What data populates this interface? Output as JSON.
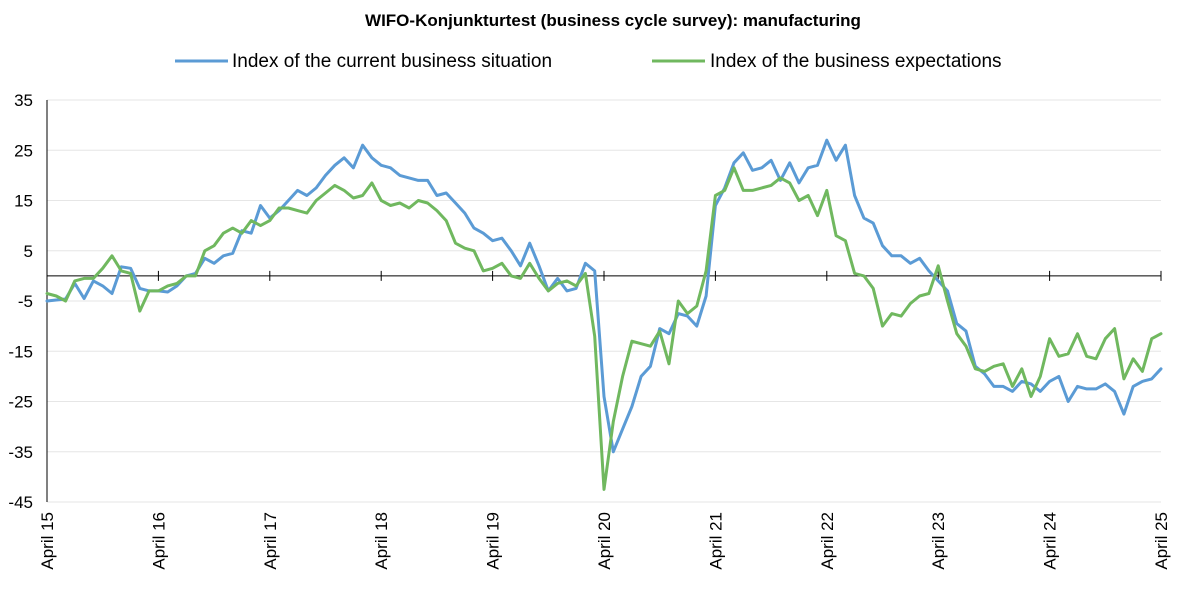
{
  "chart_data": {
    "type": "line",
    "title": "WIFO-Konjunkturtest (business cycle survey): manufacturing",
    "xlabel": "",
    "ylabel": "",
    "ylim": [
      -45,
      35
    ],
    "yticks": [
      35,
      25,
      15,
      5,
      -5,
      -15,
      -25,
      -35,
      -45
    ],
    "x_ticks": [
      "April 15",
      "April 16",
      "April 17",
      "April 18",
      "April 19",
      "April 20",
      "April 21",
      "April 22",
      "April 23",
      "April 24",
      "April 25"
    ],
    "x_start": "April 15",
    "x_end": "April 25",
    "frequency": "monthly",
    "grid": true,
    "legend_position": "top",
    "series": [
      {
        "name": "Index of the current business situation",
        "color": "#5b9bd5",
        "values": [
          -5.0,
          -4.8,
          -4.6,
          -1.5,
          -4.5,
          -1.0,
          -2.0,
          -3.5,
          1.8,
          1.5,
          -2.5,
          -3.0,
          -3.0,
          -3.2,
          -2.0,
          0.0,
          0.5,
          3.5,
          2.5,
          4.0,
          4.5,
          9.0,
          8.5,
          14.0,
          11.5,
          13.0,
          15.0,
          17.0,
          16.0,
          17.5,
          20.0,
          22.0,
          23.5,
          21.5,
          26.0,
          23.5,
          22.0,
          21.5,
          20.0,
          19.5,
          19.0,
          19.0,
          16.0,
          16.5,
          14.5,
          12.5,
          9.5,
          8.5,
          7.0,
          7.5,
          5.0,
          2.0,
          6.5,
          2.0,
          -3.0,
          -0.5,
          -3.0,
          -2.5,
          2.5,
          1.0,
          -24.0,
          -35.0,
          -30.5,
          -26.0,
          -20.0,
          -18.0,
          -10.5,
          -11.5,
          -7.5,
          -8.0,
          -10.0,
          -4.0,
          14.0,
          17.5,
          22.5,
          24.5,
          21.0,
          21.5,
          23.0,
          19.0,
          22.5,
          18.5,
          21.5,
          22.0,
          27.0,
          23.0,
          26.0,
          16.0,
          11.5,
          10.5,
          6.0,
          4.0,
          4.0,
          2.5,
          3.5,
          1.0,
          -1.0,
          -3.0,
          -9.5,
          -11.0,
          -18.0,
          -19.5,
          -22.0,
          -22.0,
          -23.0,
          -21.0,
          -21.5,
          -23.0,
          -21.0,
          -20.0,
          -25.0,
          -22.0,
          -22.5,
          -22.5,
          -21.5,
          -23.0,
          -27.5,
          -22.0,
          -21.0,
          -20.5,
          -18.5
        ],
        "note": ""
      },
      {
        "name": "Index of the business expectations",
        "color": "#70b85f",
        "values": [
          -3.5,
          -4.0,
          -5.0,
          -1.0,
          -0.5,
          -0.5,
          1.5,
          4.0,
          1.0,
          0.5,
          -7.0,
          -3.0,
          -3.0,
          -2.0,
          -1.5,
          0.0,
          0.0,
          5.0,
          6.0,
          8.5,
          9.5,
          8.5,
          11.0,
          10.0,
          11.0,
          13.5,
          13.5,
          13.0,
          12.5,
          15.0,
          16.5,
          18.0,
          17.0,
          15.5,
          16.0,
          18.5,
          15.0,
          14.0,
          14.5,
          13.5,
          15.0,
          14.5,
          13.0,
          11.0,
          6.5,
          5.5,
          5.0,
          1.0,
          1.5,
          2.5,
          0.0,
          -0.5,
          2.5,
          -0.5,
          -3.0,
          -1.5,
          -1.0,
          -2.0,
          0.5,
          -12.0,
          -42.5,
          -29.0,
          -20.0,
          -13.0,
          -13.5,
          -14.0,
          -11.0,
          -17.5,
          -5.0,
          -7.5,
          -6.0,
          1.0,
          16.0,
          17.0,
          21.5,
          17.0,
          17.0,
          17.5,
          18.0,
          19.5,
          18.5,
          15.0,
          16.0,
          12.0,
          17.0,
          8.0,
          7.0,
          0.5,
          0.0,
          -2.5,
          -10.0,
          -7.5,
          -8.0,
          -5.5,
          -4.0,
          -3.5,
          2.0,
          -5.0,
          -11.5,
          -14.0,
          -18.5,
          -19.0,
          -18.0,
          -17.5,
          -22.0,
          -18.5,
          -24.0,
          -20.0,
          -12.5,
          -16.0,
          -15.5,
          -11.5,
          -16.0,
          -16.5,
          -12.5,
          -10.5,
          -20.5,
          -16.5,
          -19.0,
          -12.5,
          -11.5
        ],
        "note": ""
      }
    ]
  }
}
